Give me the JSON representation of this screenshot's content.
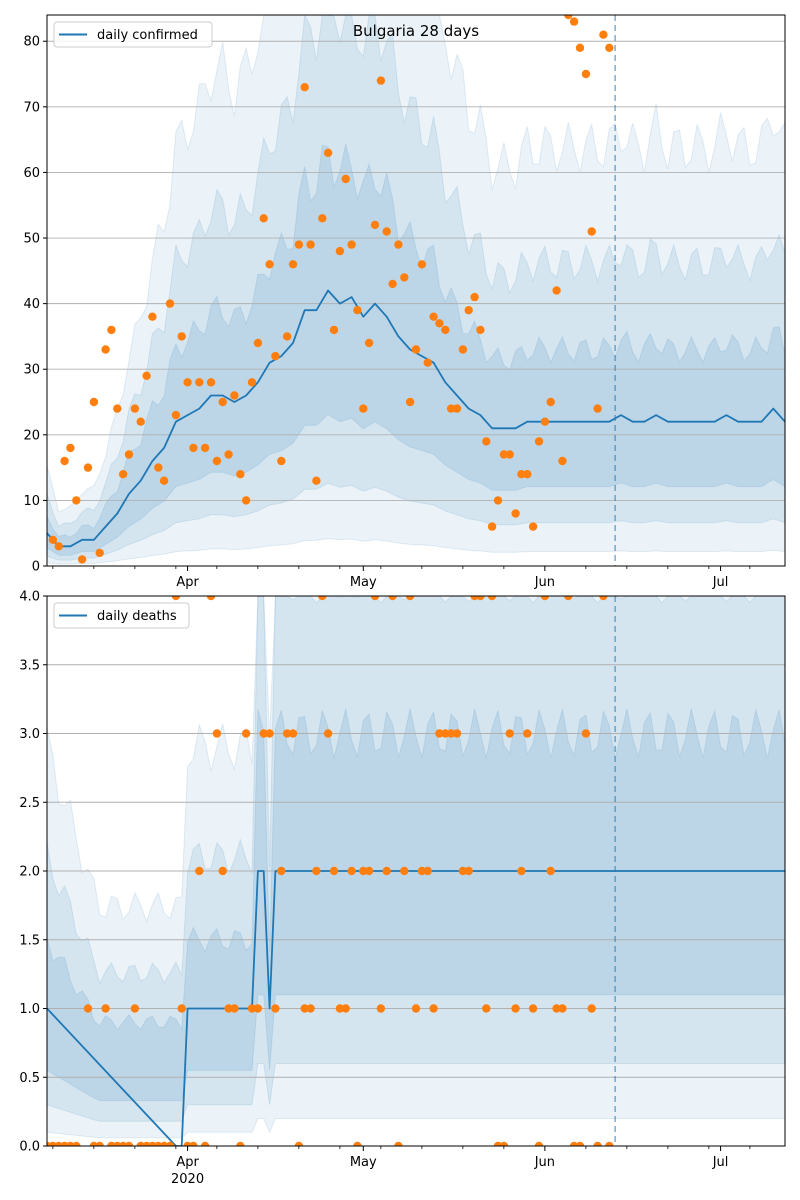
{
  "chart_data": [
    {
      "type": "line",
      "title": "Bulgaria 28 days",
      "xlabel": "",
      "ylabel": "",
      "xlim": [
        "2020-03-08",
        "2020-07-12"
      ],
      "ylim": [
        0,
        84
      ],
      "x_ticks": [
        {
          "date": "2020-04-01",
          "label": "Apr"
        },
        {
          "date": "2020-05-01",
          "label": "May"
        },
        {
          "date": "2020-06-01",
          "label": "Jun"
        },
        {
          "date": "2020-07-01",
          "label": "Jul"
        }
      ],
      "x_year_label": "2020",
      "y_ticks": [
        0,
        10,
        20,
        30,
        40,
        50,
        60,
        70,
        80
      ],
      "grid": "horizontal",
      "legend_position": "top-left",
      "forecast_start": "2020-06-13",
      "series": [
        {
          "name": "daily confirmed",
          "kind": "line",
          "color": "#1f77b4",
          "x": [
            "2020-03-08",
            "2020-03-10",
            "2020-03-12",
            "2020-03-14",
            "2020-03-16",
            "2020-03-18",
            "2020-03-20",
            "2020-03-22",
            "2020-03-24",
            "2020-03-26",
            "2020-03-28",
            "2020-03-30",
            "2020-04-01",
            "2020-04-03",
            "2020-04-05",
            "2020-04-07",
            "2020-04-09",
            "2020-04-11",
            "2020-04-13",
            "2020-04-15",
            "2020-04-17",
            "2020-04-19",
            "2020-04-21",
            "2020-04-23",
            "2020-04-25",
            "2020-04-27",
            "2020-04-29",
            "2020-05-01",
            "2020-05-03",
            "2020-05-05",
            "2020-05-07",
            "2020-05-09",
            "2020-05-11",
            "2020-05-13",
            "2020-05-15",
            "2020-05-17",
            "2020-05-19",
            "2020-05-21",
            "2020-05-23",
            "2020-05-25",
            "2020-05-27",
            "2020-05-29",
            "2020-05-31",
            "2020-06-02",
            "2020-06-04",
            "2020-06-06",
            "2020-06-08",
            "2020-06-10",
            "2020-06-12",
            "2020-06-14",
            "2020-06-16",
            "2020-06-18",
            "2020-06-20",
            "2020-06-22",
            "2020-06-24",
            "2020-06-26",
            "2020-06-28",
            "2020-06-30",
            "2020-07-02",
            "2020-07-04",
            "2020-07-06",
            "2020-07-08",
            "2020-07-10",
            "2020-07-12"
          ],
          "y": [
            5,
            3,
            3,
            4,
            4,
            6,
            8,
            11,
            13,
            16,
            18,
            22,
            23,
            24,
            26,
            26,
            25,
            26,
            28,
            31,
            32,
            34,
            39,
            39,
            42,
            40,
            41,
            38,
            40,
            38,
            35,
            33,
            32,
            31,
            28,
            26,
            24,
            23,
            21,
            21,
            21,
            22,
            22,
            22,
            22,
            22,
            22,
            22,
            22,
            23,
            22,
            22,
            23,
            22,
            22,
            22,
            22,
            22,
            23,
            22,
            22,
            22,
            24,
            22
          ]
        },
        {
          "name": "",
          "kind": "scatter",
          "color": "#ff7f0e",
          "x": [
            "2020-03-09",
            "2020-03-10",
            "2020-03-11",
            "2020-03-12",
            "2020-03-13",
            "2020-03-14",
            "2020-03-15",
            "2020-03-16",
            "2020-03-17",
            "2020-03-18",
            "2020-03-19",
            "2020-03-20",
            "2020-03-21",
            "2020-03-22",
            "2020-03-23",
            "2020-03-24",
            "2020-03-25",
            "2020-03-26",
            "2020-03-27",
            "2020-03-28",
            "2020-03-29",
            "2020-03-30",
            "2020-03-31",
            "2020-04-01",
            "2020-04-02",
            "2020-04-03",
            "2020-04-04",
            "2020-04-05",
            "2020-04-06",
            "2020-04-07",
            "2020-04-08",
            "2020-04-09",
            "2020-04-10",
            "2020-04-11",
            "2020-04-12",
            "2020-04-13",
            "2020-04-14",
            "2020-04-15",
            "2020-04-16",
            "2020-04-17",
            "2020-04-18",
            "2020-04-19",
            "2020-04-20",
            "2020-04-21",
            "2020-04-22",
            "2020-04-23",
            "2020-04-24",
            "2020-04-25",
            "2020-04-26",
            "2020-04-27",
            "2020-04-28",
            "2020-04-29",
            "2020-04-30",
            "2020-05-01",
            "2020-05-02",
            "2020-05-03",
            "2020-05-04",
            "2020-05-05",
            "2020-05-06",
            "2020-05-07",
            "2020-05-08",
            "2020-05-09",
            "2020-05-10",
            "2020-05-11",
            "2020-05-12",
            "2020-05-13",
            "2020-05-14",
            "2020-05-15",
            "2020-05-16",
            "2020-05-17",
            "2020-05-18",
            "2020-05-19",
            "2020-05-20",
            "2020-05-21",
            "2020-05-22",
            "2020-05-23",
            "2020-05-24",
            "2020-05-25",
            "2020-05-26",
            "2020-05-27",
            "2020-05-28",
            "2020-05-29",
            "2020-05-30",
            "2020-05-31",
            "2020-06-01",
            "2020-06-02",
            "2020-06-03",
            "2020-06-04",
            "2020-06-05",
            "2020-06-06",
            "2020-06-07",
            "2020-06-08",
            "2020-06-09",
            "2020-06-10",
            "2020-06-11",
            "2020-06-12"
          ],
          "y": [
            4,
            3,
            16,
            18,
            10,
            1,
            15,
            25,
            2,
            33,
            36,
            24,
            14,
            17,
            24,
            22,
            29,
            38,
            15,
            13,
            40,
            23,
            35,
            28,
            18,
            28,
            18,
            28,
            16,
            25,
            17,
            26,
            14,
            10,
            28,
            34,
            53,
            46,
            32,
            16,
            35,
            46,
            49,
            73,
            49,
            13,
            53,
            63,
            36,
            48,
            59,
            49,
            39,
            24,
            34,
            52,
            74,
            51,
            43,
            49,
            44,
            25,
            33,
            46,
            31,
            38,
            37,
            36,
            24,
            24,
            33,
            39,
            41,
            36,
            19,
            6,
            10,
            17,
            17,
            8,
            14,
            14,
            6,
            19,
            22,
            25,
            42,
            16,
            84,
            83,
            79,
            75,
            51,
            24,
            81,
            79
          ]
        }
      ]
    },
    {
      "type": "line",
      "title": "",
      "xlabel": "",
      "ylabel": "",
      "xlim": [
        "2020-03-08",
        "2020-07-12"
      ],
      "ylim": [
        0,
        4
      ],
      "x_ticks": [
        {
          "date": "2020-04-01",
          "label": "Apr"
        },
        {
          "date": "2020-05-01",
          "label": "May"
        },
        {
          "date": "2020-06-01",
          "label": "Jun"
        },
        {
          "date": "2020-07-01",
          "label": "Jul"
        }
      ],
      "x_year_label": "2020",
      "y_ticks": [
        "0.0",
        "0.5",
        "1.0",
        "1.5",
        "2.0",
        "2.5",
        "3.0",
        "3.5",
        "4.0"
      ],
      "grid": "horizontal",
      "legend_position": "top-left",
      "forecast_start": "2020-06-13",
      "series": [
        {
          "name": "daily deaths",
          "kind": "line",
          "color": "#1f77b4",
          "x": [
            "2020-03-08",
            "2020-03-30",
            "2020-03-31",
            "2020-04-01",
            "2020-04-11",
            "2020-04-12",
            "2020-04-13",
            "2020-04-14",
            "2020-04-15",
            "2020-04-16",
            "2020-04-17",
            "2020-07-12"
          ],
          "y": [
            1,
            0,
            0,
            1,
            1,
            1,
            2,
            2,
            1,
            2,
            2,
            2
          ]
        },
        {
          "name": "",
          "kind": "scatter",
          "color": "#ff7f0e",
          "x": [
            "2020-03-08",
            "2020-03-09",
            "2020-03-10",
            "2020-03-11",
            "2020-03-12",
            "2020-03-13",
            "2020-03-15",
            "2020-03-16",
            "2020-03-17",
            "2020-03-18",
            "2020-03-19",
            "2020-03-20",
            "2020-03-21",
            "2020-03-22",
            "2020-03-23",
            "2020-03-24",
            "2020-03-25",
            "2020-03-26",
            "2020-03-27",
            "2020-03-28",
            "2020-03-29",
            "2020-03-30",
            "2020-03-31",
            "2020-04-01",
            "2020-04-02",
            "2020-04-03",
            "2020-04-04",
            "2020-04-05",
            "2020-04-06",
            "2020-04-07",
            "2020-04-08",
            "2020-04-09",
            "2020-04-10",
            "2020-04-11",
            "2020-04-12",
            "2020-04-13",
            "2020-04-14",
            "2020-04-15",
            "2020-04-16",
            "2020-04-17",
            "2020-04-18",
            "2020-04-19",
            "2020-04-20",
            "2020-04-21",
            "2020-04-22",
            "2020-04-23",
            "2020-04-24",
            "2020-04-25",
            "2020-04-26",
            "2020-04-27",
            "2020-04-28",
            "2020-04-29",
            "2020-04-30",
            "2020-05-01",
            "2020-05-02",
            "2020-05-03",
            "2020-05-04",
            "2020-05-05",
            "2020-05-06",
            "2020-05-07",
            "2020-05-08",
            "2020-05-09",
            "2020-05-10",
            "2020-05-11",
            "2020-05-12",
            "2020-05-13",
            "2020-05-14",
            "2020-05-15",
            "2020-05-16",
            "2020-05-17",
            "2020-05-18",
            "2020-05-19",
            "2020-05-20",
            "2020-05-21",
            "2020-05-22",
            "2020-05-23",
            "2020-05-24",
            "2020-05-25",
            "2020-05-26",
            "2020-05-27",
            "2020-05-28",
            "2020-05-29",
            "2020-05-30",
            "2020-05-31",
            "2020-06-01",
            "2020-06-02",
            "2020-06-03",
            "2020-06-04",
            "2020-06-05",
            "2020-06-06",
            "2020-06-07",
            "2020-06-08",
            "2020-06-09",
            "2020-06-10",
            "2020-06-11",
            "2020-06-12"
          ],
          "y": [
            0,
            0,
            0,
            0,
            0,
            0,
            1,
            0,
            0,
            1,
            0,
            0,
            0,
            0,
            1,
            0,
            0,
            0,
            0,
            0,
            0,
            4,
            1,
            0,
            0,
            2,
            0,
            4,
            3,
            2,
            1,
            1,
            0,
            3,
            1,
            1,
            3,
            3,
            1,
            2,
            3,
            3,
            0,
            1,
            1,
            2,
            4,
            3,
            2,
            1,
            1,
            2,
            0,
            2,
            2,
            4,
            1,
            2,
            4,
            0,
            2,
            4,
            1,
            2,
            2,
            1,
            3,
            3,
            3,
            3,
            2,
            2,
            4,
            4,
            1,
            4,
            0,
            0,
            3,
            1,
            2,
            3,
            1,
            0,
            4,
            2,
            1,
            1,
            4,
            0,
            0,
            3,
            1,
            0,
            4,
            0
          ]
        }
      ]
    }
  ]
}
